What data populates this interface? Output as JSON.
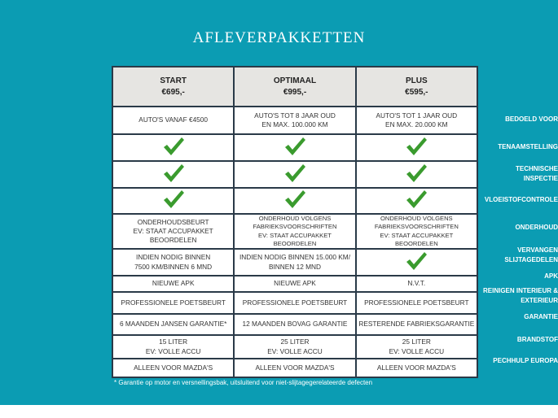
{
  "title": "AFLEVERPAKKETTEN",
  "colors": {
    "background": "#0b9cb3",
    "check": "#3a9b2e",
    "header_bg": "#e6e5e2"
  },
  "packages": [
    {
      "name": "START",
      "price": "€695,-"
    },
    {
      "name": "OPTIMAAL",
      "price": "€995,-"
    },
    {
      "name": "PLUS",
      "price": "€595,-"
    }
  ],
  "rows": [
    {
      "label": [
        "BEDOELD VOOR"
      ],
      "cells": [
        [
          "AUTO'S VANAF €4500"
        ],
        [
          "AUTO'S TOT 8 JAAR OUD",
          "EN MAX. 100.000 KM"
        ],
        [
          "AUTO'S TOT 1 JAAR OUD",
          "EN MAX. 20.000 KM"
        ]
      ]
    },
    {
      "label": [
        "TENAAMSTELLING"
      ],
      "cells": [
        "check-icon",
        "check-icon",
        "check-icon"
      ]
    },
    {
      "label": [
        "TECHNISCHE",
        "INSPECTIE"
      ],
      "cells": [
        "check-icon",
        "check-icon",
        "check-icon"
      ]
    },
    {
      "label": [
        "VLOEISTOFCONTROLE"
      ],
      "cells": [
        "check-icon",
        "check-icon",
        "check-icon"
      ]
    },
    {
      "label": [
        "ONDERHOUD"
      ],
      "cells": [
        [
          "ONDERHOUDSBEURT",
          "EV: STAAT ACCUPAKKET BEOORDELEN"
        ],
        [
          "ONDERHOUD VOLGENS",
          "FABRIEKSVOORSCHRIFTEN",
          "EV: STAAT ACCUPAKKET BEOORDELEN"
        ],
        [
          "ONDERHOUD VOLGENS",
          "FABRIEKSVOORSCHRIFTEN",
          "EV: STAAT ACCUPAKKET BEOORDELEN"
        ]
      ]
    },
    {
      "label": [
        "VERVANGEN",
        "SLIJTAGEDELEN"
      ],
      "cells": [
        [
          "INDIEN NODIG BINNEN",
          "7500 KM/BINNEN 6 MND"
        ],
        [
          "INDIEN NODIG BINNEN 15.000 KM/",
          "BINNEN 12 MND"
        ],
        "check-icon"
      ]
    },
    {
      "label": [
        "APK"
      ],
      "cells": [
        [
          "NIEUWE APK"
        ],
        [
          "NIEUWE APK"
        ],
        [
          "N.V.T."
        ]
      ]
    },
    {
      "label": [
        "REINIGEN INTERIEUR &",
        "EXTERIEUR"
      ],
      "cells": [
        [
          "PROFESSIONELE POETSBEURT"
        ],
        [
          "PROFESSIONELE POETSBEURT"
        ],
        [
          "PROFESSIONELE POETSBEURT"
        ]
      ]
    },
    {
      "label": [
        "GARANTIE"
      ],
      "cells": [
        [
          "6 MAANDEN JANSEN GARANTIE*"
        ],
        [
          "12 MAANDEN BOVAG GARANTIE"
        ],
        [
          "RESTERENDE FABRIEKSGARANTIE"
        ]
      ]
    },
    {
      "label": [
        "BRANDSTOF"
      ],
      "cells": [
        [
          "15 LITER",
          "EV: VOLLE ACCU"
        ],
        [
          "25 LITER",
          "EV: VOLLE ACCU"
        ],
        [
          "25 LITER",
          "EV: VOLLE ACCU"
        ]
      ]
    },
    {
      "label": [
        "PECHHULP EUROPA"
      ],
      "cells": [
        [
          "ALLEEN VOOR MAZDA'S"
        ],
        [
          "ALLEEN VOOR MAZDA'S"
        ],
        [
          "ALLEEN VOOR MAZDA'S"
        ]
      ]
    }
  ],
  "footnote": "* Garantie op motor en versnellingsbak, uitsluitend voor niet-slijtagegerelateerde defecten"
}
